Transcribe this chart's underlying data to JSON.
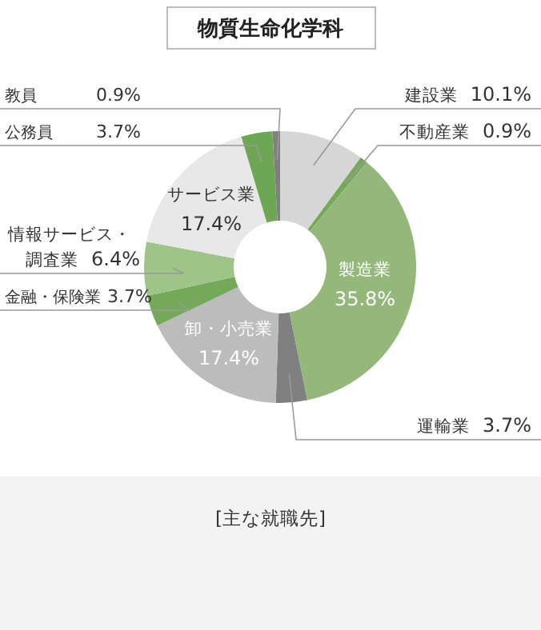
{
  "chart_data": {
    "type": "donut",
    "title": "物質生命化学科",
    "categories": [
      "建設業",
      "不動産業",
      "製造業",
      "運輸業",
      "卸・小売業",
      "金融・保険業",
      "情報サービス・調査業",
      "サービス業",
      "公務員",
      "教員"
    ],
    "values": [
      10.1,
      0.9,
      35.8,
      3.7,
      17.4,
      3.7,
      6.4,
      17.4,
      3.7,
      0.9
    ],
    "value_labels": [
      "10.1%",
      "0.9%",
      "35.8%",
      "3.7%",
      "17.4%",
      "3.7%",
      "6.4%",
      "17.4%",
      "3.7%",
      "0.9%"
    ],
    "colors": [
      "#d6d6d6",
      "#74a95a",
      "#93b87a",
      "#808080",
      "#bcbcbc",
      "#74a95a",
      "#9fc487",
      "#e8e8e8",
      "#6da753",
      "#808080"
    ],
    "annotations": [
      "[主な就職先]"
    ]
  }
}
